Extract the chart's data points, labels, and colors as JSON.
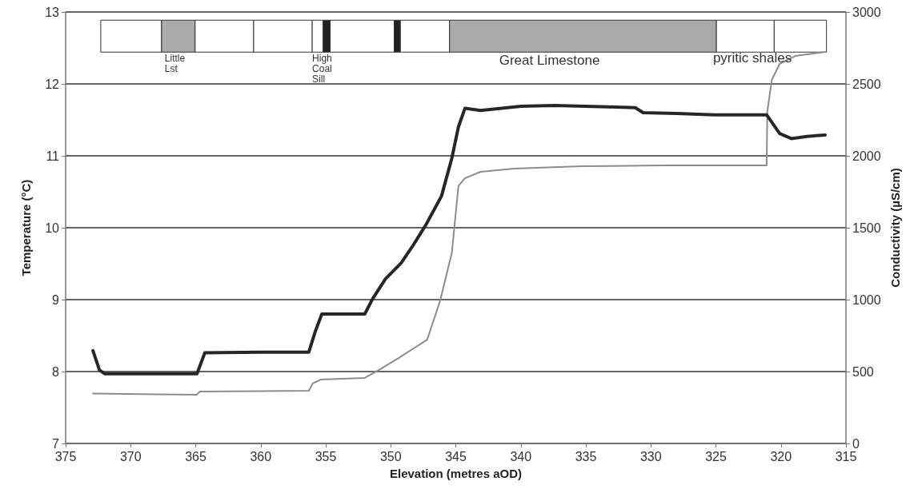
{
  "chart_data": {
    "type": "line",
    "xlabel": "Elevation (metres aOD)",
    "ylabel": "Temperature (°C)",
    "y2label": "Conductivity (µS/cm)",
    "xlim": [
      375,
      315
    ],
    "xticks": [
      375,
      370,
      365,
      360,
      355,
      350,
      345,
      340,
      335,
      330,
      325,
      320,
      315
    ],
    "ylim": [
      7,
      13
    ],
    "yticks": [
      7,
      8,
      9,
      10,
      11,
      12,
      13
    ],
    "y2lim": [
      0,
      3000
    ],
    "y2ticks": [
      0,
      500,
      1000,
      1500,
      2000,
      2500,
      3000
    ],
    "grid": "y",
    "marker": "none",
    "line_style": "solid",
    "annotations": [
      "Little\nLst",
      "High\nCoal\nSill",
      "Great Limestone",
      "pyritic shales"
    ],
    "series": [
      {
        "color": "#262626",
        "x": [
          372.9,
          372.4,
          372.0,
          368.0,
          364.9,
          364.3,
          360.0,
          356.3,
          355.8,
          355.3,
          352.0,
          351.4,
          350.4,
          349.2,
          348.3,
          347.3,
          346.1,
          345.3,
          344.8,
          344.3,
          343.1,
          340.0,
          337.4,
          333.3,
          331.2,
          330.6,
          328.0,
          325.1,
          321.1,
          320.1,
          319.2,
          318.0,
          316.6
        ],
        "values": [
          8.29,
          8.02,
          7.97,
          7.97,
          7.97,
          8.26,
          8.27,
          8.27,
          8.56,
          8.8,
          8.8,
          9.01,
          9.29,
          9.51,
          9.75,
          10.04,
          10.44,
          10.97,
          11.4,
          11.66,
          11.63,
          11.69,
          11.7,
          11.68,
          11.67,
          11.6,
          11.59,
          11.57,
          11.57,
          11.31,
          11.24,
          11.27,
          11.29
        ]
      },
      {
        "color": "#8c8c8c",
        "axis": "y2",
        "x": [
          372.9,
          368.0,
          364.9,
          364.7,
          360.0,
          356.3,
          356.0,
          355.4,
          352.0,
          351.0,
          349.4,
          347.2,
          346.2,
          345.3,
          344.8,
          344.3,
          343.1,
          340.5,
          335.3,
          329.1,
          321.1,
          321.05,
          320.7,
          320.1,
          318.9,
          316.6
        ],
        "values": [
          347,
          342,
          339,
          361,
          364,
          367,
          417,
          444,
          456,
          506,
          594,
          722,
          994,
          1328,
          1789,
          1844,
          1889,
          1911,
          1928,
          1933,
          1933,
          2306,
          2528,
          2639,
          2694,
          2722
        ]
      }
    ]
  }
}
